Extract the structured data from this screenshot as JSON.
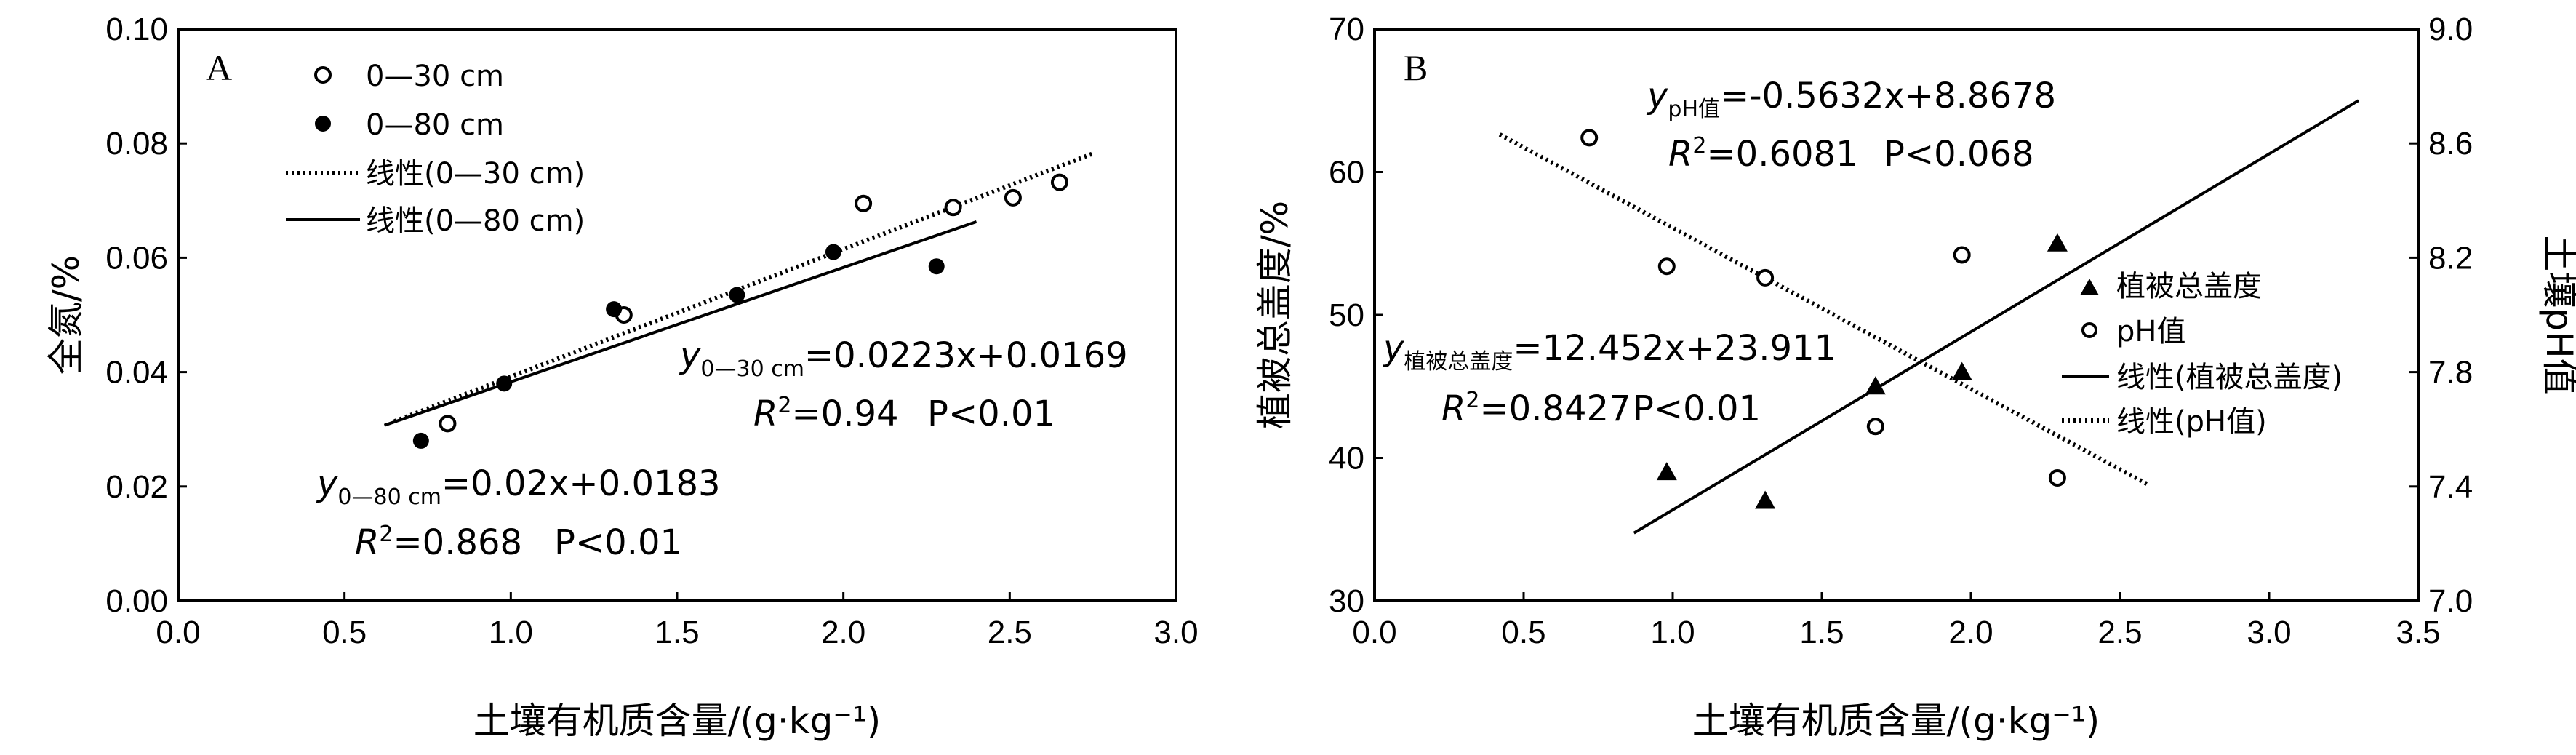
{
  "chart_data": [
    {
      "type": "scatter",
      "panel_label": "A",
      "xlabel": "土壤有机质含量/(g·kg⁻¹)",
      "ylabel": "全氮/%",
      "xlim": [
        0.0,
        3.0
      ],
      "ylim": [
        0.0,
        0.1
      ],
      "xticks": [
        "0.0",
        "0.5",
        "1.0",
        "1.5",
        "2.0",
        "2.5",
        "3.0"
      ],
      "yticks": [
        "0.00",
        "0.02",
        "0.04",
        "0.06",
        "0.08",
        "0.10"
      ],
      "legend": {
        "position": "top-left",
        "entries": [
          "0—30 cm",
          "0—80 cm",
          "线性(0—30 cm)",
          "线性(0—80 cm)"
        ]
      },
      "series": [
        {
          "name": "0—30 cm",
          "marker": "open-circle",
          "points": [
            [
              0.81,
              0.031
            ],
            [
              1.34,
              0.05
            ],
            [
              2.06,
              0.0695
            ],
            [
              2.33,
              0.0688
            ],
            [
              2.51,
              0.0705
            ],
            [
              2.65,
              0.0732
            ]
          ]
        },
        {
          "name": "0—80 cm",
          "marker": "filled-circle",
          "points": [
            [
              0.73,
              0.028
            ],
            [
              0.98,
              0.038
            ],
            [
              1.31,
              0.051
            ],
            [
              1.68,
              0.0535
            ],
            [
              1.97,
              0.061
            ],
            [
              2.28,
              0.0585
            ]
          ]
        }
      ],
      "fits": [
        {
          "name": "线性(0—30 cm)",
          "style": "dotted",
          "slope": 0.0223,
          "intercept": 0.0169,
          "x_range": [
            0.65,
            2.75
          ]
        },
        {
          "name": "线性(0—80 cm)",
          "style": "solid",
          "slope": 0.02,
          "intercept": 0.0183,
          "x_range": [
            0.62,
            2.4
          ]
        }
      ],
      "annotations": [
        {
          "y_sub": "0—30 cm",
          "equation": "=0.0223x+0.0169",
          "r2": "=0.94",
          "p": "P<0.01"
        },
        {
          "y_sub": "0—80 cm",
          "equation": "=0.02x+0.0183",
          "r2": "=0.868",
          "p": "P<0.01"
        }
      ]
    },
    {
      "type": "scatter",
      "panel_label": "B",
      "xlabel": "土壤有机质含量/(g·kg⁻¹)",
      "ylabel_left": "植被总盖度/%",
      "ylabel_right": "土壤pH值",
      "xlim": [
        0.0,
        3.5
      ],
      "ylim_left": [
        30,
        70
      ],
      "ylim_right": [
        7.0,
        9.0
      ],
      "xticks": [
        "0.0",
        "0.5",
        "1.0",
        "1.5",
        "2.0",
        "2.5",
        "3.0",
        "3.5"
      ],
      "yticks_left": [
        "30",
        "40",
        "50",
        "60",
        "70"
      ],
      "yticks_right": [
        "7.0",
        "7.4",
        "7.8",
        "8.2",
        "8.6",
        "9.0"
      ],
      "legend": {
        "position": "right",
        "entries": [
          "植被总盖度",
          "pH值",
          "线性(植被总盖度)",
          "线性(pH值)"
        ]
      },
      "series": [
        {
          "name": "植被总盖度",
          "marker": "filled-triangle",
          "axis": "left",
          "points": [
            [
              0.98,
              39.0
            ],
            [
              1.31,
              37.0
            ],
            [
              1.68,
              45.0
            ],
            [
              1.97,
              46.0
            ],
            [
              2.29,
              55.0
            ]
          ]
        },
        {
          "name": "pH值",
          "marker": "open-circle",
          "axis": "right",
          "points": [
            [
              0.72,
              8.62
            ],
            [
              0.98,
              8.17
            ],
            [
              1.31,
              8.13
            ],
            [
              1.68,
              7.61
            ],
            [
              1.97,
              8.21
            ],
            [
              2.29,
              7.43
            ]
          ]
        }
      ],
      "fits": [
        {
          "name": "线性(植被总盖度)",
          "style": "solid",
          "axis": "left",
          "slope": 12.452,
          "intercept": 23.911,
          "x_range": [
            0.87,
            3.3
          ]
        },
        {
          "name": "线性(pH值)",
          "style": "dotted",
          "axis": "right",
          "slope": -0.5632,
          "intercept": 8.8678,
          "x_range": [
            0.42,
            2.6
          ]
        }
      ],
      "annotations": [
        {
          "y_sub": "pH值",
          "equation": "=-0.5632x+8.8678",
          "r2": "=0.6081",
          "p": "P<0.068"
        },
        {
          "y_sub": "植被总盖度",
          "equation": "=12.452x+23.911",
          "r2": "=0.8427",
          "p": "P<0.01"
        }
      ]
    }
  ]
}
